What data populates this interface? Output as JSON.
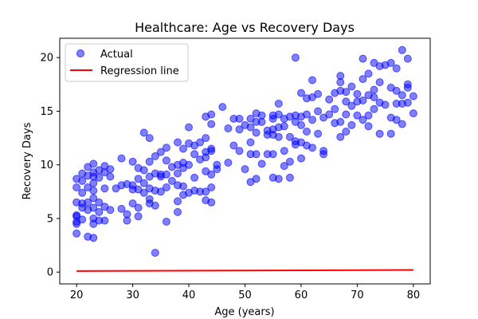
{
  "chart_data": {
    "type": "scatter",
    "title": "Healthcare: Age vs Recovery Days",
    "xlabel": "Age (years)",
    "ylabel": "Recovery Days",
    "xlim": [
      17,
      83
    ],
    "ylim": [
      -1.1,
      21.8
    ],
    "xticks": [
      20,
      30,
      40,
      50,
      60,
      70,
      80
    ],
    "yticks": [
      0,
      5,
      10,
      15,
      20
    ],
    "grid": false,
    "legend": {
      "placement": "upper-left",
      "entries": [
        {
          "label": "Actual",
          "kind": "marker",
          "color": "#0000ff"
        },
        {
          "label": "Regression line",
          "kind": "line",
          "color": "#ff0000"
        }
      ]
    },
    "series": [
      {
        "name": "Actual",
        "color": "#0000ff",
        "points": [
          [
            20,
            3.6
          ],
          [
            20,
            4.5
          ],
          [
            20,
            4.7
          ],
          [
            20,
            5.2
          ],
          [
            20,
            5.3
          ],
          [
            20,
            6.5
          ],
          [
            20,
            7.9
          ],
          [
            20,
            8.7
          ],
          [
            21,
            4.9
          ],
          [
            21,
            6.0
          ],
          [
            21,
            6.4
          ],
          [
            21,
            7.4
          ],
          [
            21,
            8.5
          ],
          [
            21,
            9.2
          ],
          [
            22,
            3.3
          ],
          [
            22,
            5.8
          ],
          [
            22,
            6.5
          ],
          [
            22,
            7.9
          ],
          [
            22,
            9.0
          ],
          [
            22,
            9.8
          ],
          [
            23,
            3.2
          ],
          [
            23,
            4.5
          ],
          [
            23,
            5.0
          ],
          [
            23,
            6.0
          ],
          [
            23,
            6.9
          ],
          [
            23,
            7.6
          ],
          [
            23,
            8.3
          ],
          [
            23,
            8.9
          ],
          [
            23,
            9.3
          ],
          [
            23,
            10.1
          ],
          [
            24,
            4.8
          ],
          [
            24,
            5.6
          ],
          [
            24,
            6.5
          ],
          [
            24,
            8.8
          ],
          [
            24,
            9.5
          ],
          [
            25,
            4.8
          ],
          [
            25,
            6.1
          ],
          [
            25,
            7.8
          ],
          [
            25,
            9.3
          ],
          [
            25,
            9.9
          ],
          [
            26,
            5.8
          ],
          [
            26,
            8.9
          ],
          [
            26,
            9.6
          ],
          [
            27,
            7.8
          ],
          [
            28,
            5.9
          ],
          [
            28,
            8.1
          ],
          [
            28,
            10.6
          ],
          [
            29,
            4.8
          ],
          [
            29,
            5.4
          ],
          [
            29,
            8.2
          ],
          [
            30,
            6.4
          ],
          [
            30,
            7.7
          ],
          [
            30,
            8.1
          ],
          [
            30,
            10.3
          ],
          [
            31,
            5.2
          ],
          [
            31,
            6.0
          ],
          [
            31,
            7.7
          ],
          [
            31,
            8.7
          ],
          [
            31,
            9.7
          ],
          [
            32,
            7.4
          ],
          [
            32,
            8.3
          ],
          [
            32,
            9.5
          ],
          [
            32,
            13.0
          ],
          [
            33,
            6.4
          ],
          [
            33,
            6.8
          ],
          [
            33,
            7.8
          ],
          [
            33,
            8.9
          ],
          [
            33,
            10.3
          ],
          [
            33,
            12.5
          ],
          [
            34,
            1.8
          ],
          [
            34,
            6.2
          ],
          [
            34,
            7.6
          ],
          [
            34,
            9.2
          ],
          [
            34,
            10.8
          ],
          [
            35,
            7.5
          ],
          [
            35,
            8.9
          ],
          [
            35,
            9.1
          ],
          [
            35,
            11.2
          ],
          [
            36,
            4.7
          ],
          [
            36,
            7.9
          ],
          [
            36,
            9.1
          ],
          [
            36,
            10.4
          ],
          [
            36,
            11.6
          ],
          [
            37,
            8.5
          ],
          [
            37,
            9.8
          ],
          [
            38,
            5.6
          ],
          [
            38,
            6.6
          ],
          [
            38,
            8.1
          ],
          [
            38,
            9.2
          ],
          [
            38,
            10.0
          ],
          [
            38,
            12.1
          ],
          [
            39,
            7.2
          ],
          [
            39,
            8.0
          ],
          [
            39,
            9.7
          ],
          [
            39,
            10.2
          ],
          [
            39,
            11.5
          ],
          [
            40,
            7.4
          ],
          [
            40,
            10.0
          ],
          [
            40,
            12.0
          ],
          [
            40,
            13.5
          ],
          [
            41,
            7.6
          ],
          [
            41,
            8.8
          ],
          [
            41,
            11.0
          ],
          [
            41,
            11.8
          ],
          [
            42,
            7.5
          ],
          [
            42,
            10.5
          ],
          [
            42,
            12.1
          ],
          [
            43,
            6.7
          ],
          [
            43,
            7.5
          ],
          [
            43,
            9.4
          ],
          [
            43,
            10.7
          ],
          [
            43,
            11.2
          ],
          [
            43,
            12.5
          ],
          [
            43,
            14.5
          ],
          [
            44,
            6.5
          ],
          [
            44,
            7.9
          ],
          [
            44,
            9.1
          ],
          [
            44,
            11.3
          ],
          [
            44,
            11.5
          ],
          [
            44,
            13.8
          ],
          [
            44,
            14.7
          ],
          [
            45,
            9.6
          ],
          [
            45,
            10.0
          ],
          [
            46,
            15.4
          ],
          [
            47,
            10.2
          ],
          [
            47,
            13.4
          ],
          [
            48,
            11.8
          ],
          [
            48,
            14.3
          ],
          [
            49,
            11.3
          ],
          [
            49,
            13.3
          ],
          [
            49,
            14.3
          ],
          [
            50,
            9.6
          ],
          [
            50,
            13.7
          ],
          [
            51,
            8.4
          ],
          [
            51,
            11.0
          ],
          [
            51,
            12.1
          ],
          [
            51,
            13.5
          ],
          [
            51,
            14.3
          ],
          [
            52,
            8.7
          ],
          [
            52,
            11.0
          ],
          [
            52,
            13.0
          ],
          [
            52,
            14.0
          ],
          [
            52,
            14.8
          ],
          [
            53,
            10.1
          ],
          [
            53,
            14.0
          ],
          [
            53,
            14.6
          ],
          [
            54,
            11.0
          ],
          [
            54,
            12.8
          ],
          [
            54,
            13.2
          ],
          [
            55,
            8.8
          ],
          [
            55,
            11.0
          ],
          [
            55,
            12.8
          ],
          [
            55,
            13.3
          ],
          [
            55,
            14.3
          ],
          [
            55,
            14.6
          ],
          [
            56,
            8.7
          ],
          [
            56,
            12.6
          ],
          [
            56,
            13.5
          ],
          [
            56,
            14.7
          ],
          [
            56,
            15.7
          ],
          [
            57,
            9.9
          ],
          [
            57,
            11.3
          ],
          [
            57,
            13.6
          ],
          [
            57,
            14.3
          ],
          [
            58,
            8.8
          ],
          [
            58,
            10.3
          ],
          [
            58,
            12.6
          ],
          [
            58,
            14.5
          ],
          [
            59,
            11.9
          ],
          [
            59,
            12.2
          ],
          [
            59,
            14.0
          ],
          [
            59,
            14.6
          ],
          [
            59,
            20.0
          ],
          [
            60,
            10.6
          ],
          [
            60,
            12.1
          ],
          [
            60,
            13.7
          ],
          [
            60,
            14.5
          ],
          [
            60,
            16.7
          ],
          [
            61,
            11.8
          ],
          [
            61,
            13.1
          ],
          [
            61,
            14.7
          ],
          [
            61,
            16.2
          ],
          [
            62,
            11.6
          ],
          [
            62,
            14.2
          ],
          [
            62,
            16.3
          ],
          [
            62,
            17.9
          ],
          [
            63,
            12.9
          ],
          [
            63,
            15.0
          ],
          [
            63,
            16.6
          ],
          [
            64,
            11.0
          ],
          [
            64,
            11.3
          ],
          [
            64,
            14.4
          ],
          [
            65,
            14.7
          ],
          [
            65,
            16.1
          ],
          [
            66,
            13.9
          ],
          [
            66,
            15.2
          ],
          [
            66,
            16.7
          ],
          [
            67,
            12.6
          ],
          [
            67,
            14.0
          ],
          [
            67,
            16.9
          ],
          [
            67,
            17.7
          ],
          [
            67,
            18.3
          ],
          [
            68,
            13.1
          ],
          [
            68,
            14.7
          ],
          [
            68,
            15.9
          ],
          [
            68,
            16.8
          ],
          [
            69,
            13.7
          ],
          [
            69,
            15.5
          ],
          [
            69,
            17.3
          ],
          [
            70,
            14.6
          ],
          [
            70,
            15.9
          ],
          [
            70,
            16.6
          ],
          [
            71,
            14.2
          ],
          [
            71,
            16.0
          ],
          [
            71,
            18.0
          ],
          [
            71,
            19.9
          ],
          [
            72,
            13.6
          ],
          [
            72,
            14.6
          ],
          [
            72,
            16.5
          ],
          [
            72,
            18.5
          ],
          [
            73,
            15.2
          ],
          [
            73,
            16.3
          ],
          [
            73,
            17.0
          ],
          [
            73,
            19.5
          ],
          [
            74,
            12.9
          ],
          [
            74,
            15.8
          ],
          [
            74,
            17.7
          ],
          [
            74,
            19.2
          ],
          [
            75,
            15.6
          ],
          [
            75,
            19.3
          ],
          [
            76,
            12.9
          ],
          [
            76,
            14.4
          ],
          [
            76,
            17.2
          ],
          [
            76,
            19.5
          ],
          [
            77,
            14.2
          ],
          [
            77,
            15.7
          ],
          [
            77,
            16.9
          ],
          [
            77,
            19.0
          ],
          [
            78,
            13.8
          ],
          [
            78,
            15.7
          ],
          [
            78,
            16.5
          ],
          [
            78,
            20.7
          ],
          [
            79,
            15.8
          ],
          [
            79,
            17.2
          ],
          [
            79,
            17.5
          ],
          [
            79,
            19.9
          ],
          [
            80,
            14.8
          ],
          [
            80,
            16.4
          ]
        ]
      },
      {
        "name": "Regression line",
        "color": "#ff0000",
        "line": [
          [
            20,
            0.1
          ],
          [
            80,
            0.2
          ]
        ]
      }
    ]
  }
}
